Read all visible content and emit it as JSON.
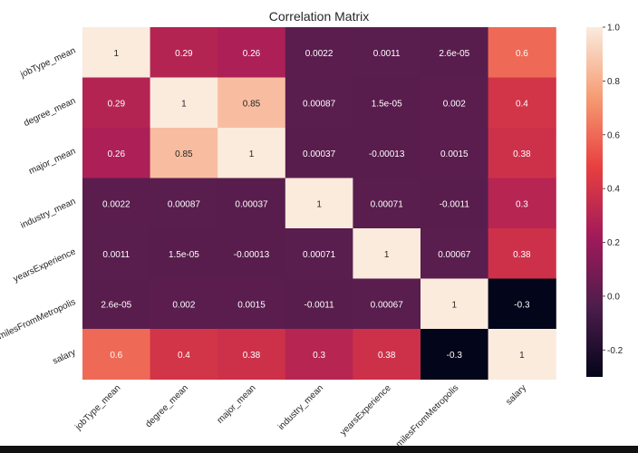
{
  "chart_data": {
    "type": "heatmap",
    "title": "Correlation Matrix",
    "rows": [
      "jobType_mean",
      "degree_mean",
      "major_mean",
      "industry_mean",
      "yearsExperience",
      "milesFromMetropolis",
      "salary"
    ],
    "columns": [
      "jobType_mean",
      "degree_mean",
      "major_mean",
      "industry_mean",
      "yearsExperience",
      "milesFromMetropolis",
      "salary"
    ],
    "values": [
      [
        1,
        0.29,
        0.26,
        0.0022,
        0.0011,
        2.6e-05,
        0.6
      ],
      [
        0.29,
        1,
        0.85,
        0.00087,
        1.5e-05,
        0.002,
        0.4
      ],
      [
        0.26,
        0.85,
        1,
        0.00037,
        -0.00013,
        0.0015,
        0.38
      ],
      [
        0.0022,
        0.00087,
        0.00037,
        1,
        0.00071,
        -0.0011,
        0.3
      ],
      [
        0.0011,
        1.5e-05,
        -0.00013,
        0.00071,
        1,
        0.00067,
        0.38
      ],
      [
        2.6e-05,
        0.002,
        0.0015,
        -0.0011,
        0.00067,
        1,
        -0.3
      ],
      [
        0.6,
        0.4,
        0.38,
        0.3,
        0.38,
        -0.3,
        1
      ]
    ],
    "annotations": [
      [
        "1",
        "0.29",
        "0.26",
        "0.0022",
        "0.0011",
        "2.6e-05",
        "0.6"
      ],
      [
        "0.29",
        "1",
        "0.85",
        "0.00087",
        "1.5e-05",
        "0.002",
        "0.4"
      ],
      [
        "0.26",
        "0.85",
        "1",
        "0.00037",
        "-0.00013",
        "0.0015",
        "0.38"
      ],
      [
        "0.0022",
        "0.00087",
        "0.00037",
        "1",
        "0.00071",
        "-0.0011",
        "0.3"
      ],
      [
        "0.0011",
        "1.5e-05",
        "-0.00013",
        "0.00071",
        "1",
        "0.00067",
        "0.38"
      ],
      [
        "2.6e-05",
        "0.002",
        "0.0015",
        "-0.0011",
        "0.00067",
        "1",
        "-0.3"
      ],
      [
        "0.6",
        "0.4",
        "0.38",
        "0.3",
        "0.38",
        "-0.3",
        "1"
      ]
    ],
    "colorbar": {
      "range": [
        -0.3,
        1
      ],
      "ticks": [
        1.0,
        0.8,
        0.6,
        0.4,
        0.2,
        0.0,
        -0.2
      ],
      "tick_labels": [
        "1.0",
        "0.8",
        "0.6",
        "0.4",
        "0.2",
        "0.0",
        "-0.2"
      ],
      "colormap": "rocket",
      "colors": [
        "#03051a",
        "#4c1d4b",
        "#a11a5b",
        "#e83f3f",
        "#f69c73",
        "#faebdd"
      ]
    },
    "grid": false
  }
}
